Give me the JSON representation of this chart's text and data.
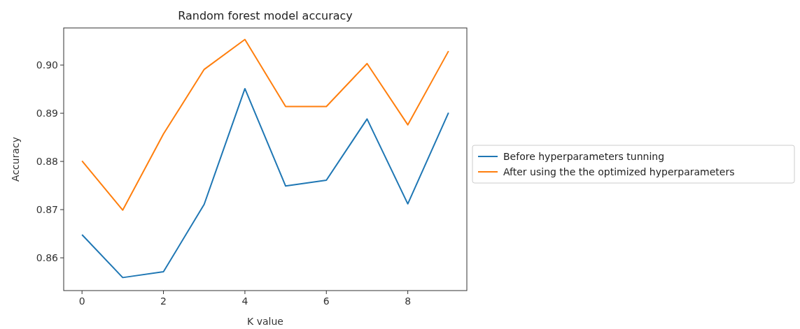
{
  "chart_data": {
    "type": "line",
    "title": "Random forest model accuracy",
    "xlabel": "K value",
    "ylabel": "Accuracy",
    "x": [
      0,
      1,
      2,
      3,
      4,
      5,
      6,
      7,
      8,
      9
    ],
    "series": [
      {
        "name": "Before hyperparameters tunning",
        "color": "#1f77b4",
        "values": [
          0.8648,
          0.8559,
          0.8571,
          0.8711,
          0.8951,
          0.8749,
          0.8761,
          0.8888,
          0.8712,
          0.8901
        ]
      },
      {
        "name": "After using the the optimized hyperparameters",
        "color": "#ff7f0e",
        "values": [
          0.8801,
          0.8699,
          0.8857,
          0.8991,
          0.9053,
          0.8914,
          0.8914,
          0.9003,
          0.8876,
          0.9029
        ]
      }
    ],
    "xlim": [
      -0.45,
      9.45
    ],
    "ylim": [
      0.8532,
      0.9077
    ],
    "xticks": [
      0,
      2,
      4,
      6,
      8
    ],
    "yticks": [
      {
        "value": 0.86,
        "label": "0.86"
      },
      {
        "value": 0.87,
        "label": "0.87"
      },
      {
        "value": 0.88,
        "label": "0.88"
      },
      {
        "value": 0.89,
        "label": "0.89"
      },
      {
        "value": 0.9,
        "label": "0.90"
      }
    ],
    "grid": false,
    "legend": "right",
    "line_style": "solid",
    "marker": "none"
  }
}
